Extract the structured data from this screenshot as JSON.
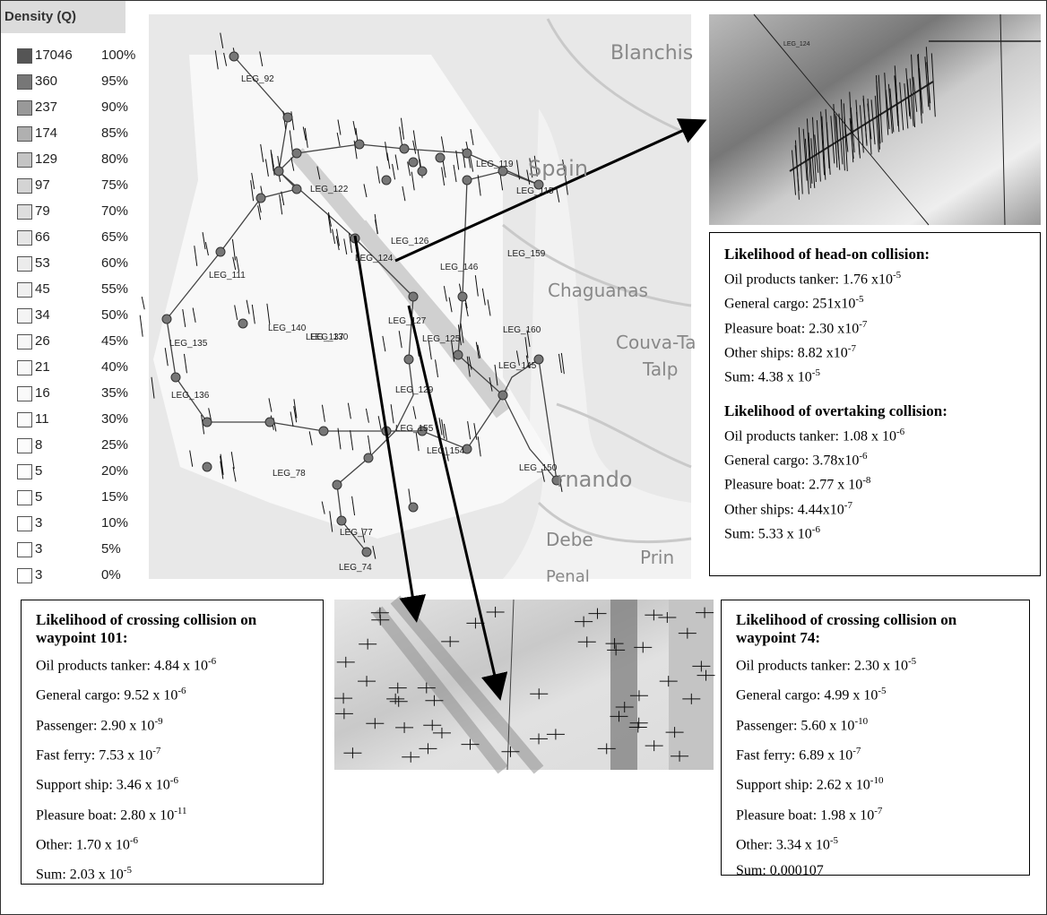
{
  "legend": {
    "title": "Density (Q)",
    "rows": [
      {
        "value": "17046",
        "percent": "100%",
        "color": "#555555"
      },
      {
        "value": "360",
        "percent": "95%",
        "color": "#777777"
      },
      {
        "value": "237",
        "percent": "90%",
        "color": "#999999"
      },
      {
        "value": "174",
        "percent": "85%",
        "color": "#b0b0b0"
      },
      {
        "value": "129",
        "percent": "80%",
        "color": "#c4c4c4"
      },
      {
        "value": "97",
        "percent": "75%",
        "color": "#d4d4d4"
      },
      {
        "value": "79",
        "percent": "70%",
        "color": "#dedede"
      },
      {
        "value": "66",
        "percent": "65%",
        "color": "#e6e6e6"
      },
      {
        "value": "53",
        "percent": "60%",
        "color": "#ececec"
      },
      {
        "value": "45",
        "percent": "55%",
        "color": "#f0f0f0"
      },
      {
        "value": "34",
        "percent": "50%",
        "color": "#f4f4f4"
      },
      {
        "value": "26",
        "percent": "45%",
        "color": "#f6f6f6"
      },
      {
        "value": "21",
        "percent": "40%",
        "color": "#f8f8f8"
      },
      {
        "value": "16",
        "percent": "35%",
        "color": "#fafafa"
      },
      {
        "value": "11",
        "percent": "30%",
        "color": "#fbfbfb"
      },
      {
        "value": "8",
        "percent": "25%",
        "color": "#fcfcfc"
      },
      {
        "value": "5",
        "percent": "20%",
        "color": "#fdfdfd"
      },
      {
        "value": "5",
        "percent": "15%",
        "color": "#fefefe"
      },
      {
        "value": "3",
        "percent": "10%",
        "color": "#ffffff"
      },
      {
        "value": "3",
        "percent": "5%",
        "color": "#ffffff"
      },
      {
        "value": "3",
        "percent": "0%",
        "color": "#ffffff"
      }
    ]
  },
  "map": {
    "places": [
      "Blanchis",
      "Spain",
      "Chaguanas",
      "Couva-Ta",
      "Talp",
      "rnando",
      "Debe",
      "Penal",
      "Prin"
    ],
    "legs": [
      "LEG_92",
      "LEG_111",
      "LEG_135",
      "LEG_136",
      "LEG_126",
      "LEG_124",
      "LEG_146",
      "LEG_125",
      "LEG_145",
      "LEG_150",
      "LEG_154",
      "LEG_77",
      "LEG_74",
      "LEG_78",
      "LEG_122",
      "LEG_130",
      "LEG_140",
      "LEG_137",
      "LEG_127",
      "LEG_129",
      "LEG_155",
      "LEG_159",
      "LEG_160",
      "LEG_119",
      "LEG_115"
    ]
  },
  "zoom_label": "LEG_124",
  "boxes": {
    "head_on": {
      "sections": [
        {
          "heading": "Likelihood of head-on collision:",
          "lines": [
            {
              "text": "Oil products tanker: 1.76 x10",
              "sup": "-5"
            },
            {
              "text": "General cargo: 251x10",
              "sup": "-5"
            },
            {
              "text": "Pleasure boat: 2.30 x10",
              "sup": "-7"
            },
            {
              "text": "Other ships: 8.82 x10",
              "sup": "-7"
            },
            {
              "text": "Sum: 4.38 x 10",
              "sup": "-5"
            }
          ]
        },
        {
          "heading": "Likelihood of overtaking collision:",
          "lines": [
            {
              "text": "Oil products tanker: 1.08 x 10",
              "sup": "-6"
            },
            {
              "text": "General cargo: 3.78x10",
              "sup": "-6"
            },
            {
              "text": "Pleasure boat: 2.77 x 10",
              "sup": "-8"
            },
            {
              "text": "Other ships: 4.44x10",
              "sup": "-7"
            },
            {
              "text": "Sum: 5.33 x 10",
              "sup": "-6"
            }
          ]
        }
      ]
    },
    "crossing_101": {
      "sections": [
        {
          "heading": "Likelihood of crossing collision on waypoint 101:",
          "lines": [
            {
              "text": "Oil products tanker: 4.84 x 10",
              "sup": "-6"
            },
            {
              "text": "General cargo: 9.52 x 10",
              "sup": "-6"
            },
            {
              "text": "Passenger: 2.90 x 10",
              "sup": "-9"
            },
            {
              "text": "Fast ferry: 7.53 x 10",
              "sup": "-7"
            },
            {
              "text": "Support ship: 3.46 x 10",
              "sup": "-6"
            },
            {
              "text": "Pleasure boat: 2.80 x 10",
              "sup": "-11"
            },
            {
              "text": "Other: 1.70 x 10",
              "sup": "-6"
            },
            {
              "text": "Sum: 2.03 x 10",
              "sup": "-5"
            }
          ]
        }
      ]
    },
    "crossing_74": {
      "sections": [
        {
          "heading": "Likelihood of crossing collision on waypoint 74:",
          "lines": [
            {
              "text": "Oil products tanker: 2.30 x 10",
              "sup": "-5"
            },
            {
              "text": "General cargo: 4.99 x 10",
              "sup": "-5"
            },
            {
              "text": "Passenger: 5.60 x 10",
              "sup": "-10"
            },
            {
              "text": "Fast ferry: 6.89 x 10",
              "sup": "-7"
            },
            {
              "text": "Support ship: 2.62 x 10",
              "sup": "-10"
            },
            {
              "text": "Pleasure boat: 1.98 x 10",
              "sup": "-7"
            },
            {
              "text": "Other: 3.34 x 10",
              "sup": "-5"
            },
            {
              "text": "Sum: 0.000107"
            }
          ]
        }
      ]
    }
  }
}
